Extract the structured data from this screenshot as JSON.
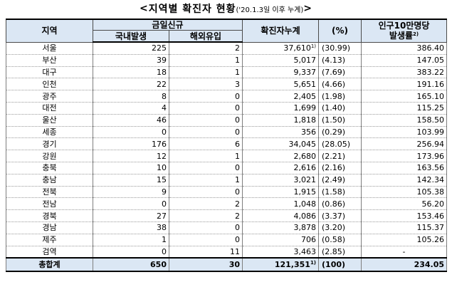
{
  "title": {
    "prefix": "< ",
    "main": "지역별 확진자 현황",
    "subtitle": "('20.1.3일 이후 누계)",
    "suffix": " >"
  },
  "headers": {
    "region": "지역",
    "today_new": "금일신규",
    "domestic": "국내발생",
    "imported": "해외유입",
    "cumulative": "확진자누계",
    "percent": "(%)",
    "rate_line1": "인구10만명당",
    "rate_line2": "발생률",
    "rate_note": "2)"
  },
  "rows": [
    {
      "region": "서울",
      "domestic": "225",
      "imported": "2",
      "cumulative": "37,610",
      "note": "1)",
      "percent": "(30.99)",
      "rate": "386.40"
    },
    {
      "region": "부산",
      "domestic": "39",
      "imported": "1",
      "cumulative": "5,017",
      "note": "",
      "percent": "(4.13)",
      "rate": "147.05"
    },
    {
      "region": "대구",
      "domestic": "18",
      "imported": "1",
      "cumulative": "9,337",
      "note": "",
      "percent": "(7.69)",
      "rate": "383.22"
    },
    {
      "region": "인천",
      "domestic": "22",
      "imported": "3",
      "cumulative": "5,651",
      "note": "",
      "percent": "(4.66)",
      "rate": "191.16"
    },
    {
      "region": "광주",
      "domestic": "8",
      "imported": "0",
      "cumulative": "2,405",
      "note": "",
      "percent": "(1.98)",
      "rate": "165.10"
    },
    {
      "region": "대전",
      "domestic": "4",
      "imported": "0",
      "cumulative": "1,699",
      "note": "",
      "percent": "(1.40)",
      "rate": "115.25"
    },
    {
      "region": "울산",
      "domestic": "46",
      "imported": "0",
      "cumulative": "1,818",
      "note": "",
      "percent": "(1.50)",
      "rate": "158.50"
    },
    {
      "region": "세종",
      "domestic": "0",
      "imported": "0",
      "cumulative": "356",
      "note": "",
      "percent": "(0.29)",
      "rate": "103.99"
    },
    {
      "region": "경기",
      "domestic": "176",
      "imported": "6",
      "cumulative": "34,045",
      "note": "",
      "percent": "(28.05)",
      "rate": "256.94"
    },
    {
      "region": "강원",
      "domestic": "12",
      "imported": "1",
      "cumulative": "2,680",
      "note": "",
      "percent": "(2.21)",
      "rate": "173.96"
    },
    {
      "region": "충북",
      "domestic": "10",
      "imported": "0",
      "cumulative": "2,616",
      "note": "",
      "percent": "(2.16)",
      "rate": "163.56"
    },
    {
      "region": "충남",
      "domestic": "15",
      "imported": "1",
      "cumulative": "3,021",
      "note": "",
      "percent": "(2.49)",
      "rate": "142.34"
    },
    {
      "region": "전북",
      "domestic": "9",
      "imported": "0",
      "cumulative": "1,915",
      "note": "",
      "percent": "(1.58)",
      "rate": "105.38"
    },
    {
      "region": "전남",
      "domestic": "0",
      "imported": "2",
      "cumulative": "1,048",
      "note": "",
      "percent": "(0.86)",
      "rate": "56.20"
    },
    {
      "region": "경북",
      "domestic": "27",
      "imported": "2",
      "cumulative": "4,086",
      "note": "",
      "percent": "(3.37)",
      "rate": "153.46"
    },
    {
      "region": "경남",
      "domestic": "38",
      "imported": "0",
      "cumulative": "3,878",
      "note": "",
      "percent": "(3.20)",
      "rate": "115.37"
    },
    {
      "region": "제주",
      "domestic": "1",
      "imported": "0",
      "cumulative": "706",
      "note": "",
      "percent": "(0.58)",
      "rate": "105.26"
    },
    {
      "region": "검역",
      "domestic": "0",
      "imported": "11",
      "cumulative": "3,463",
      "note": "",
      "percent": "(2.85)",
      "rate": "-"
    }
  ],
  "total": {
    "region": "총합계",
    "domestic": "650",
    "imported": "30",
    "cumulative": "121,351",
    "note": "1)",
    "percent": "(100)",
    "rate": "234.05"
  },
  "colors": {
    "header_bg": "#dbe7f4",
    "border": "#4a4a4a"
  }
}
